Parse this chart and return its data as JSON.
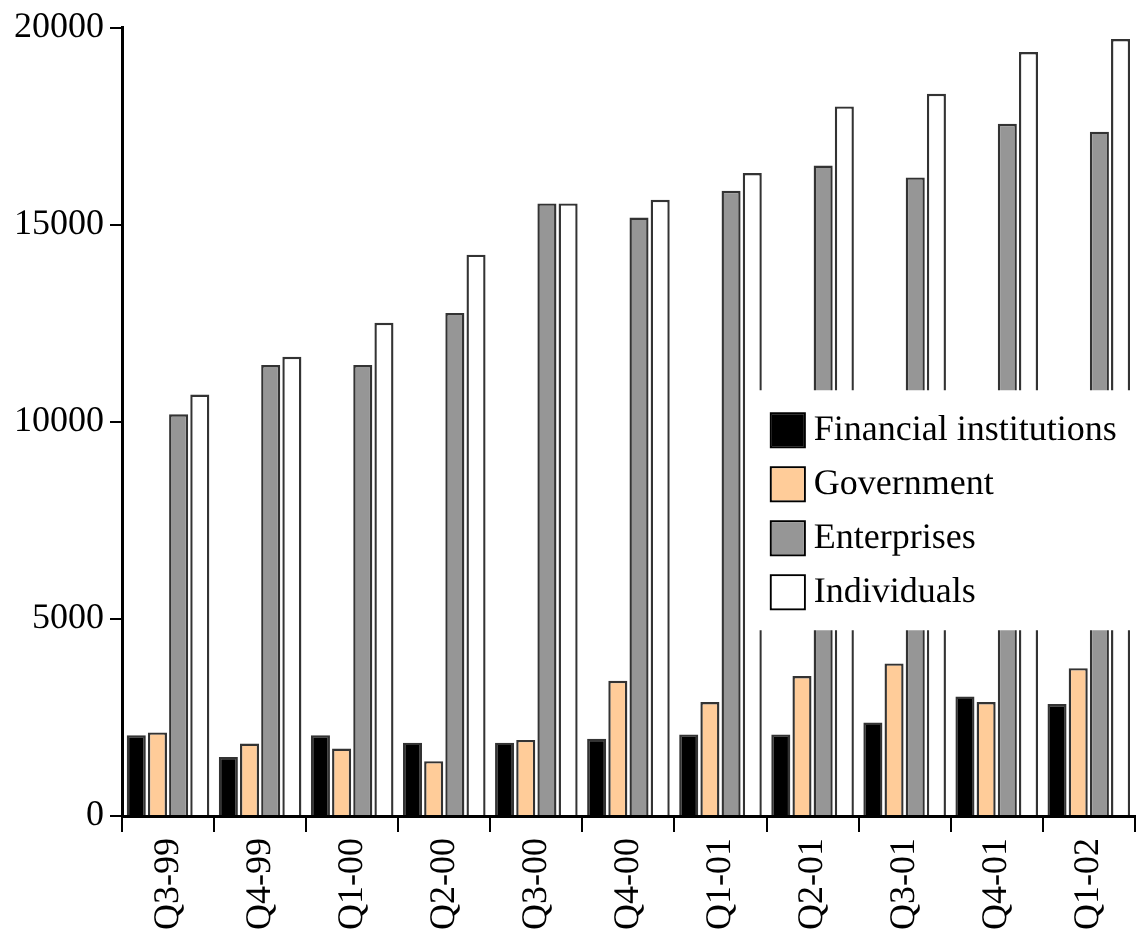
{
  "chart_data": {
    "type": "bar",
    "categories": [
      "Q3-99",
      "Q4-99",
      "Q1-00",
      "Q2-00",
      "Q3-00",
      "Q4-00",
      "Q1-01",
      "Q2-01",
      "Q3-01",
      "Q4-01",
      "Q1-02"
    ],
    "series": [
      {
        "name": "Financial institutions",
        "color": "#000000",
        "values": [
          2050,
          1500,
          2050,
          1860,
          1860,
          1960,
          2070,
          2070,
          2370,
          3030,
          2840
        ]
      },
      {
        "name": "Government",
        "color": "#ffcc99",
        "values": [
          2120,
          1840,
          1710,
          1390,
          1930,
          3430,
          2890,
          3550,
          3870,
          2890,
          3750
        ]
      },
      {
        "name": "Enterprises",
        "color": "#969696",
        "values": [
          10190,
          11440,
          11440,
          12760,
          15540,
          15180,
          15860,
          16500,
          16200,
          17560,
          17360
        ]
      },
      {
        "name": "Individuals",
        "color": "#ffffff",
        "values": [
          10690,
          11650,
          12510,
          14240,
          15540,
          15630,
          16310,
          18000,
          18320,
          19380,
          19710
        ]
      }
    ],
    "ylim": [
      0,
      20000
    ],
    "yticks": [
      0,
      5000,
      10000,
      15000,
      20000
    ],
    "grid": false,
    "legend": "right"
  }
}
